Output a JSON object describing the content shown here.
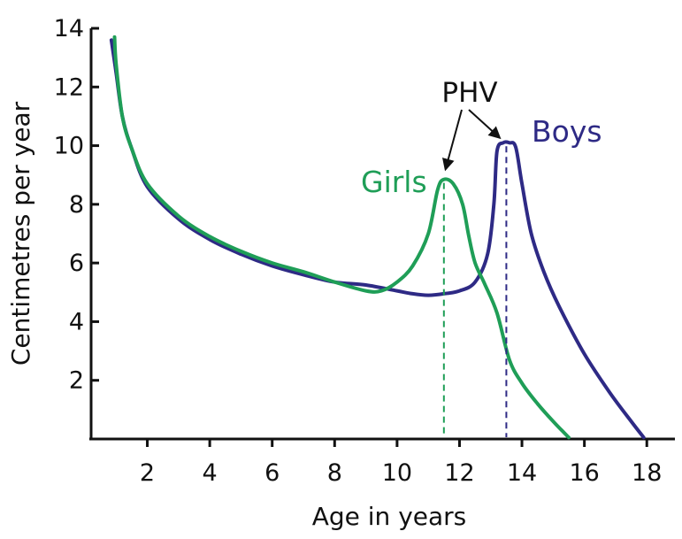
{
  "chart_data": {
    "type": "line",
    "xlabel": "Age in years",
    "ylabel": "Centimetres per year",
    "xlim": [
      0.2,
      18.9
    ],
    "ylim": [
      0,
      14
    ],
    "x_ticks": [
      2,
      4,
      6,
      8,
      10,
      12,
      14,
      16,
      18
    ],
    "y_ticks": [
      2,
      4,
      6,
      8,
      10,
      12,
      14
    ],
    "grid": false,
    "series": [
      {
        "name": "Girls",
        "color": "#1f9e57",
        "points": [
          [
            0.95,
            13.7
          ],
          [
            1.0,
            12.8
          ],
          [
            1.2,
            11.0
          ],
          [
            1.5,
            9.9
          ],
          [
            2,
            8.7
          ],
          [
            3,
            7.6
          ],
          [
            4,
            6.9
          ],
          [
            5,
            6.4
          ],
          [
            6,
            6.0
          ],
          [
            7,
            5.7
          ],
          [
            8,
            5.35
          ],
          [
            9,
            5.05
          ],
          [
            9.5,
            5.05
          ],
          [
            10,
            5.35
          ],
          [
            10.5,
            5.9
          ],
          [
            11,
            7.0
          ],
          [
            11.3,
            8.5
          ],
          [
            11.5,
            8.85
          ],
          [
            11.8,
            8.7
          ],
          [
            12.1,
            8.0
          ],
          [
            12.3,
            6.9
          ],
          [
            12.5,
            6.0
          ],
          [
            12.8,
            5.3
          ],
          [
            13.2,
            4.3
          ],
          [
            13.6,
            2.7
          ],
          [
            14,
            1.9
          ],
          [
            14.5,
            1.2
          ],
          [
            15,
            0.6
          ],
          [
            15.5,
            0.05
          ]
        ]
      },
      {
        "name": "Boys",
        "color": "#2e2a85",
        "points": [
          [
            0.85,
            13.6
          ],
          [
            1.0,
            12.5
          ],
          [
            1.2,
            11.0
          ],
          [
            1.5,
            9.9
          ],
          [
            2,
            8.6
          ],
          [
            3,
            7.5
          ],
          [
            4,
            6.8
          ],
          [
            5,
            6.3
          ],
          [
            6,
            5.9
          ],
          [
            7,
            5.6
          ],
          [
            8,
            5.35
          ],
          [
            9,
            5.25
          ],
          [
            10,
            5.05
          ],
          [
            10.5,
            4.95
          ],
          [
            11,
            4.9
          ],
          [
            11.5,
            4.95
          ],
          [
            12,
            5.05
          ],
          [
            12.5,
            5.35
          ],
          [
            12.9,
            6.3
          ],
          [
            13.1,
            8.0
          ],
          [
            13.2,
            9.8
          ],
          [
            13.4,
            10.1
          ],
          [
            13.6,
            10.1
          ],
          [
            13.8,
            9.95
          ],
          [
            14,
            8.7
          ],
          [
            14.3,
            7.0
          ],
          [
            14.7,
            5.7
          ],
          [
            15.2,
            4.5
          ],
          [
            16,
            2.9
          ],
          [
            16.8,
            1.6
          ],
          [
            17.5,
            0.6
          ],
          [
            17.9,
            0.05
          ]
        ]
      }
    ],
    "peaks": [
      {
        "series": "Girls",
        "x": 11.5,
        "y": 8.85
      },
      {
        "series": "Boys",
        "x": 13.5,
        "y": 10.1
      }
    ],
    "annotation": "PHV",
    "labels": {
      "girls": "Girls",
      "boys": "Boys"
    }
  }
}
